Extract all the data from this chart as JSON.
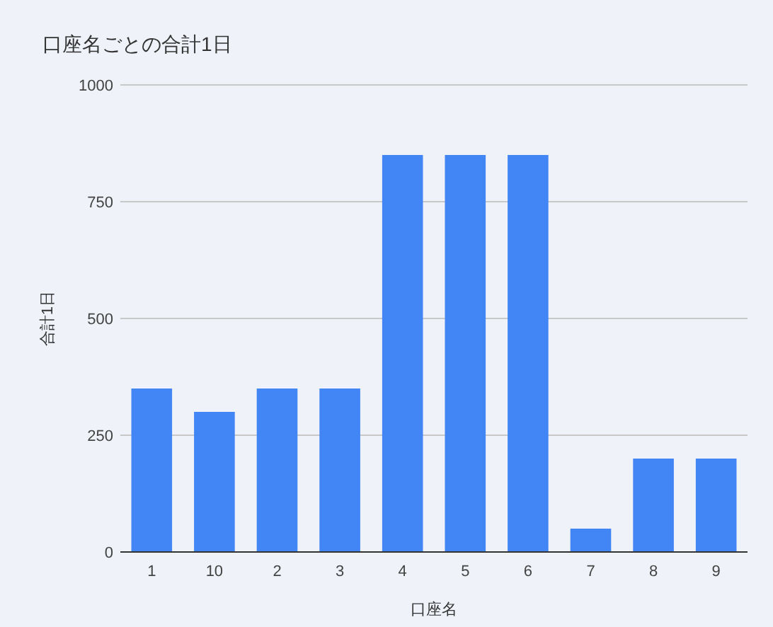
{
  "chart_data": {
    "type": "bar",
    "title": "口座名ごとの合計1日",
    "xlabel": "口座名",
    "ylabel": "合計1日",
    "categories": [
      "1",
      "10",
      "2",
      "3",
      "4",
      "5",
      "6",
      "7",
      "8",
      "9"
    ],
    "values": [
      350,
      300,
      350,
      350,
      850,
      850,
      850,
      50,
      200,
      200
    ],
    "color": "#4285f4",
    "ylim": [
      0,
      1000
    ],
    "yticks": [
      0,
      250,
      500,
      750,
      1000
    ],
    "grid": "y"
  }
}
